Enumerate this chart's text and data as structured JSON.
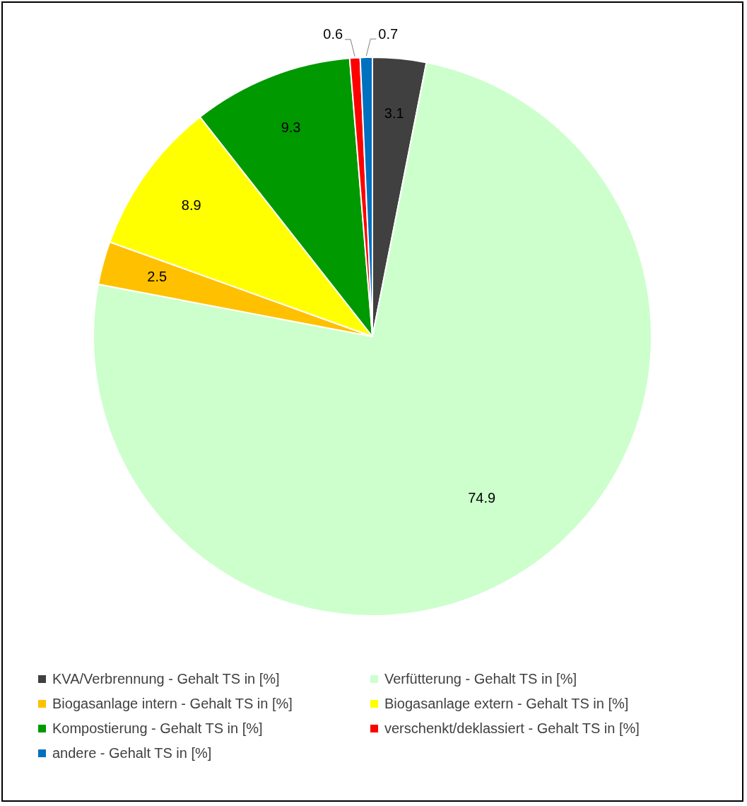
{
  "chart_data": {
    "type": "pie",
    "categories": [
      "KVA/Verbrennung - Gehalt TS in [%]",
      "Verfütterung - Gehalt TS in [%]",
      "Biogasanlage intern - Gehalt TS in [%]",
      "Biogasanlage extern - Gehalt TS in [%]",
      "Kompostierung - Gehalt TS in [%]",
      "verschenkt/deklassiert - Gehalt TS in [%]",
      "andere - Gehalt TS in [%]"
    ],
    "values": [
      3.1,
      74.9,
      2.5,
      8.9,
      9.3,
      0.6,
      0.7
    ],
    "colors": [
      "#404040",
      "#ccffcc",
      "#ffc000",
      "#ffff00",
      "#009900",
      "#ff0000",
      "#0070c0"
    ],
    "data_labels": true,
    "legend": "bottom"
  }
}
